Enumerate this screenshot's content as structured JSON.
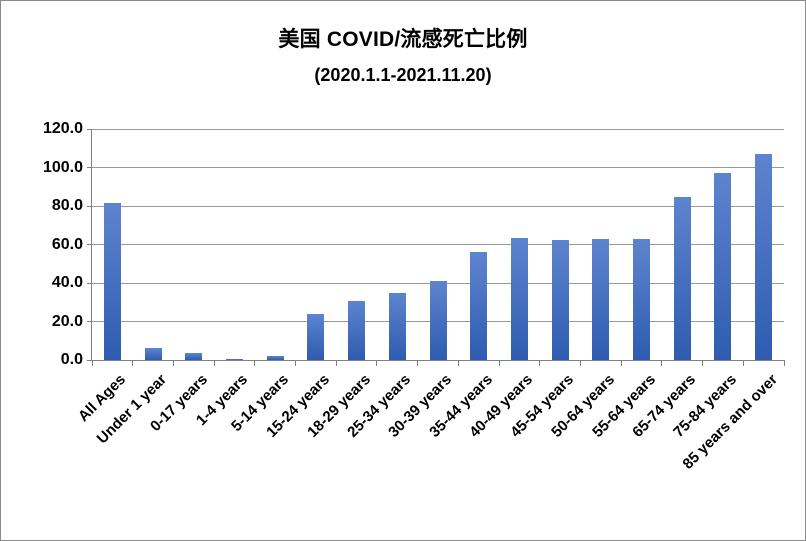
{
  "chart": {
    "title": "美国 COVID/流感死亡比例",
    "subtitle": "(2020.1.1-2021.11.20)"
  },
  "chart_data": {
    "type": "bar",
    "title": "美国 COVID/流感死亡比例",
    "subtitle": "(2020.1.1-2021.11.20)",
    "categories": [
      "All Ages",
      "Under 1 year",
      "0-17 years",
      "1-4 years",
      "5-14 years",
      "15-24 years",
      "18-29 years",
      "25-34 years",
      "30-39 years",
      "35-44 years",
      "40-49 years",
      "45-54 years",
      "50-64 years",
      "55-64 years",
      "65-74 years",
      "75-84 years",
      "85 years and over"
    ],
    "values": [
      81.7,
      6.0,
      3.4,
      0.7,
      2.3,
      23.7,
      30.5,
      34.7,
      41.3,
      56.0,
      63.5,
      62.3,
      63.0,
      63.0,
      84.9,
      97.3,
      106.9
    ],
    "xlabel": "",
    "ylabel": "",
    "ylim": [
      0,
      120
    ],
    "y_tick_step": 20,
    "y_tick_labels": [
      "0.0",
      "20.0",
      "40.0",
      "60.0",
      "80.0",
      "100.0",
      "120.0"
    ],
    "grid": true,
    "legend": "none",
    "colors": {
      "bar_gradient_top": "#5d84ce",
      "bar_gradient_bottom": "#2f5cb0",
      "gridline": "#999999",
      "axis": "#808080",
      "text": "#000000",
      "background": "#ffffff",
      "frame_border": "#8a8a8a"
    }
  }
}
